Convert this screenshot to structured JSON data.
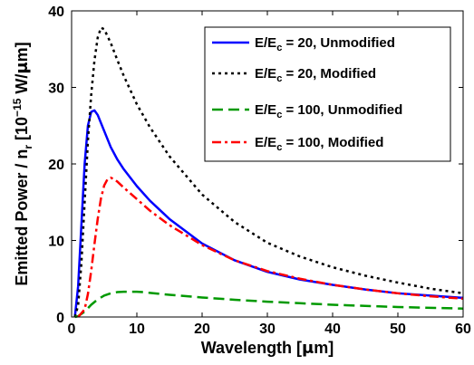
{
  "chart_data": {
    "type": "line",
    "xlabel_parts": [
      "Wavelength [",
      "μ",
      "m]"
    ],
    "ylabel_parts": [
      "Emitted Power / n",
      "r",
      " [10",
      "−15",
      " W/",
      "μ",
      "m]"
    ],
    "xlim": [
      0,
      60
    ],
    "ylim": [
      0,
      40
    ],
    "xticks": [
      0,
      10,
      20,
      30,
      40,
      50,
      60
    ],
    "yticks": [
      0,
      10,
      20,
      30,
      40
    ],
    "grid": false,
    "legend_position": "top-right",
    "series": [
      {
        "name_parts": [
          "E/E",
          "c",
          " = 20, Unmodified"
        ],
        "color": "#0000ff",
        "style": "solid",
        "x": [
          0.5,
          1,
          1.5,
          2,
          2.5,
          3,
          3.5,
          4,
          5,
          6,
          7,
          8,
          10,
          12,
          15,
          20,
          25,
          30,
          35,
          40,
          45,
          50,
          55,
          60
        ],
        "y": [
          0,
          4,
          12,
          20,
          25,
          26.8,
          27,
          26.4,
          24.3,
          22.2,
          20.6,
          19.3,
          17.1,
          15.2,
          12.8,
          9.6,
          7.4,
          5.9,
          4.9,
          4.2,
          3.6,
          3.1,
          2.8,
          2.5
        ]
      },
      {
        "name_parts": [
          "E/E",
          "c",
          " = 20, Modified"
        ],
        "color": "#000000",
        "style": "dotted",
        "x": [
          0.5,
          1,
          1.5,
          2,
          2.5,
          3,
          3.5,
          4,
          4.5,
          5,
          6,
          7,
          8,
          10,
          12,
          15,
          20,
          25,
          30,
          35,
          40,
          45,
          50,
          55,
          60
        ],
        "y": [
          0,
          1.5,
          7,
          15,
          23,
          29,
          33.5,
          36.5,
          37.8,
          37.6,
          35.8,
          33.6,
          31.5,
          27.8,
          24.8,
          21,
          16,
          12.4,
          9.7,
          7.9,
          6.5,
          5.4,
          4.5,
          3.7,
          3.1
        ]
      },
      {
        "name_parts": [
          "E/E",
          "c",
          " = 100, Unmodified"
        ],
        "color": "#009900",
        "style": "dashed",
        "x": [
          0.5,
          1,
          2,
          3,
          4,
          5,
          6,
          7,
          8,
          9,
          10,
          11,
          12,
          15,
          20,
          25,
          30,
          35,
          40,
          45,
          50,
          55,
          60
        ],
        "y": [
          0,
          0.1,
          0.7,
          1.6,
          2.3,
          2.8,
          3.1,
          3.25,
          3.3,
          3.3,
          3.3,
          3.25,
          3.15,
          2.9,
          2.55,
          2.25,
          2.0,
          1.8,
          1.6,
          1.45,
          1.3,
          1.2,
          1.1
        ]
      },
      {
        "name_parts": [
          "E/E",
          "c",
          " = 100, Modified"
        ],
        "color": "#ff0000",
        "style": "dashdot",
        "x": [
          1,
          2,
          2.5,
          3,
          3.5,
          4,
          4.5,
          5,
          5.5,
          6,
          6.5,
          7,
          8,
          10,
          12,
          15,
          20,
          25,
          30,
          35,
          40,
          45,
          50,
          55,
          60
        ],
        "y": [
          0,
          1,
          3,
          6,
          9.5,
          12.8,
          15.5,
          17.2,
          18,
          18.2,
          18,
          17.7,
          16.9,
          15.4,
          13.9,
          12,
          9.4,
          7.4,
          6,
          5,
          4.2,
          3.6,
          3.1,
          2.7,
          2.4
        ]
      }
    ]
  }
}
